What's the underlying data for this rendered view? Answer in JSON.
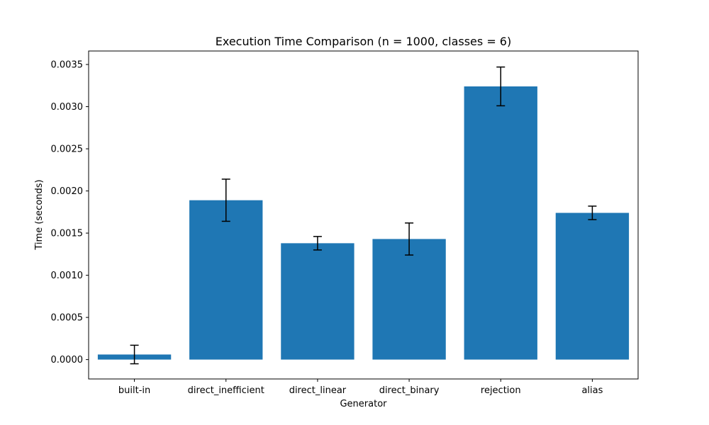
{
  "chart_data": {
    "type": "bar",
    "title": "Execution Time Comparison (n = 1000, classes = 6)",
    "xlabel": "Generator",
    "ylabel": "Time (seconds)",
    "categories": [
      "built-in",
      "direct_inefficient",
      "direct_linear",
      "direct_binary",
      "rejection",
      "alias"
    ],
    "values": [
      6e-05,
      0.00189,
      0.00138,
      0.00143,
      0.00324,
      0.00174
    ],
    "errors": [
      0.00011,
      0.00025,
      8e-05,
      0.00019,
      0.00023,
      8e-05
    ],
    "ylim": [
      -0.00023,
      0.00366
    ],
    "yticks": [
      0.0,
      0.0005,
      0.001,
      0.0015,
      0.002,
      0.0025,
      0.003,
      0.0035
    ],
    "ytick_labels": [
      "0.0000",
      "0.0005",
      "0.0010",
      "0.0015",
      "0.0020",
      "0.0025",
      "0.0030",
      "0.0035"
    ],
    "bar_color": "#1f77b4",
    "error_color": "#000000",
    "grid": false,
    "legend": "none"
  }
}
